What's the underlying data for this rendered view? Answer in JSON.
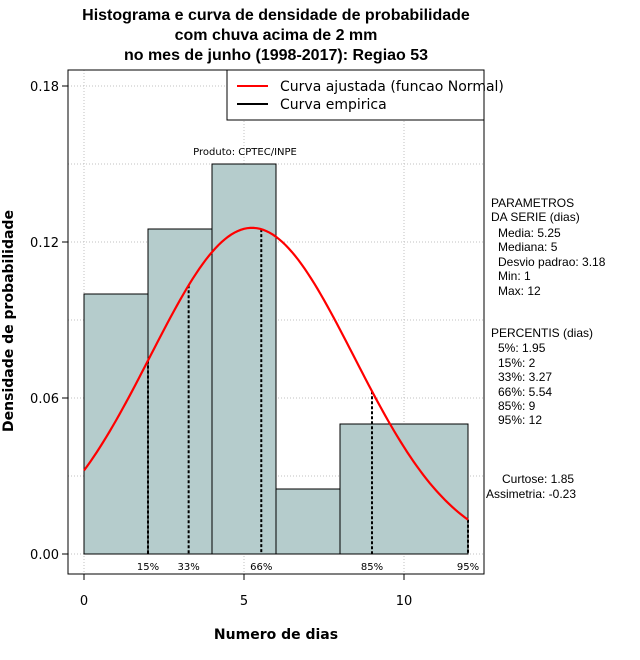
{
  "header": {
    "title_line1": "Histograma e curva de densidade de probabilidade",
    "title_line2": "com chuva acima de 2 mm",
    "title_line3": "no mes de junho (1998-2017): Regiao 53"
  },
  "credit": "Produto: CPTEC/INPE",
  "params": {
    "heading1": "PARAMETROS",
    "heading2": "DA SERIE (dias)",
    "media": "Media: 5.25",
    "mediana": "Mediana: 5",
    "desvio": "Desvio padrao: 3.18",
    "min": "Min: 1",
    "max": "Max: 12"
  },
  "percentis": {
    "heading": "PERCENTIS (dias)",
    "p5": "5%: 1.95",
    "p15": "15%: 2",
    "p33": "33%: 3.27",
    "p66": "66%: 5.54",
    "p85": "85%: 9",
    "p95": "95%: 12"
  },
  "shape": {
    "curtose": "Curtose: 1.85",
    "assimetria": "Assimetria: -0.23"
  },
  "colors": {
    "bar_fill": "#b5cccc",
    "curve": "#ff0000",
    "empirical": "#000000",
    "grid": "#c0c0c0"
  },
  "chart_data": {
    "type": "bar",
    "title": "Histograma e curva de densidade de probabilidade com chuva acima de 2 mm no mes de junho (1998-2017): Regiao 53",
    "xlabel": "Numero de dias",
    "ylabel": "Densidade de probabilidade",
    "xlim": [
      -0.5,
      12.5
    ],
    "ylim": [
      0,
      0.185
    ],
    "x_ticks": [
      0,
      5,
      10
    ],
    "y_ticks": [
      0.0,
      0.06,
      0.12,
      0.18
    ],
    "y_tick_labels": [
      "0.00",
      "0.06",
      "0.12",
      "0.18"
    ],
    "grid": true,
    "legend_position": "top-right",
    "bins": [
      {
        "x0": 0,
        "x1": 2,
        "density": 0.1
      },
      {
        "x0": 2,
        "x1": 4,
        "density": 0.125
      },
      {
        "x0": 4,
        "x1": 6,
        "density": 0.15
      },
      {
        "x0": 6,
        "x1": 8,
        "density": 0.025
      },
      {
        "x0": 8,
        "x1": 12,
        "density": 0.05
      }
    ],
    "series": [
      {
        "name": "Curva ajustada (funcao Normal)",
        "type": "line",
        "mean": 5.25,
        "sd": 3.18,
        "x_range": [
          0,
          12
        ]
      },
      {
        "name": "Curva empirica",
        "type": "line"
      }
    ],
    "percentile_markers": [
      {
        "label": "15%",
        "x": 2
      },
      {
        "label": "33%",
        "x": 3.27
      },
      {
        "label": "66%",
        "x": 5.54
      },
      {
        "label": "85%",
        "x": 9
      },
      {
        "label": "95%",
        "x": 12
      }
    ]
  }
}
